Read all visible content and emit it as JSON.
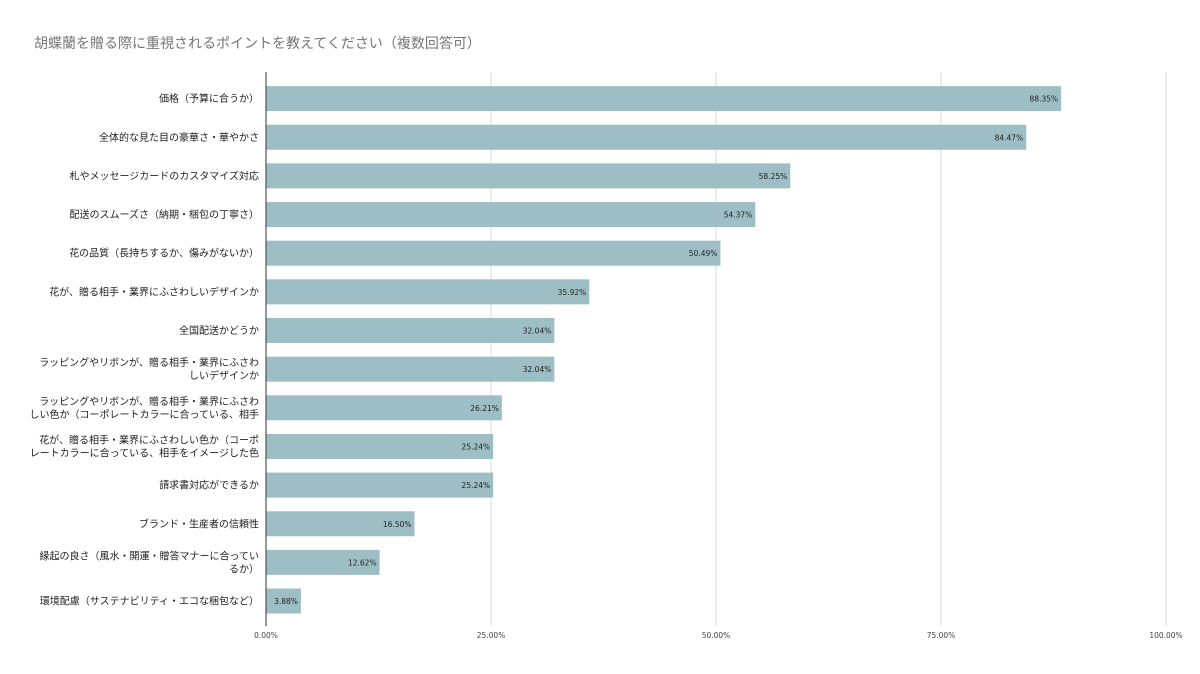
{
  "chart_data": {
    "type": "bar",
    "orientation": "horizontal",
    "title": "胡蝶蘭を贈る際に重視されるポイントを教えてください（複数回答可）",
    "xlabel": "",
    "ylabel": "",
    "xlim": [
      0,
      100
    ],
    "ticks": [
      "0.00%",
      "25.00%",
      "50.00%",
      "75.00%",
      "100.00%"
    ],
    "tick_values": [
      0,
      25,
      50,
      75,
      100
    ],
    "grid": true,
    "legend": "none",
    "bar_color": "#9dbec4",
    "categories": [
      [
        "価格（予算に合うか）"
      ],
      [
        "全体的な見た目の豪華さ・華やかさ"
      ],
      [
        "札やメッセージカードのカスタマイズ対応"
      ],
      [
        "配送のスムーズさ（納期・梱包の丁寧さ）"
      ],
      [
        "花の品質（長持ちするか、傷みがないか）"
      ],
      [
        "花が、贈る相手・業界にふさわしいデザインか"
      ],
      [
        "全国配送かどうか"
      ],
      [
        "ラッピングやリボンが、贈る相手・業界にふさわ",
        "しいデザインか"
      ],
      [
        "ラッピングやリボンが、贈る相手・業界にふさわ",
        "しい色か（コーポレートカラーに合っている、相手"
      ],
      [
        "花が、贈る相手・業界にふさわしい色か（コーポ",
        "レートカラーに合っている、相手をイメージした色"
      ],
      [
        "請求書対応ができるか"
      ],
      [
        "ブランド・生産者の信頼性"
      ],
      [
        "縁起の良さ（風水・開運・贈答マナーに合ってい",
        "るか）"
      ],
      [
        "環境配慮（サステナビリティ・エコな梱包など）"
      ]
    ],
    "values": [
      88.35,
      84.47,
      58.25,
      54.37,
      50.49,
      35.92,
      32.04,
      32.04,
      26.21,
      25.24,
      25.24,
      16.5,
      12.62,
      3.88
    ],
    "value_labels": [
      "88.35%",
      "84.47%",
      "58.25%",
      "54.37%",
      "50.49%",
      "35.92%",
      "32.04%",
      "32.04%",
      "26.21%",
      "25.24%",
      "25.24%",
      "16.50%",
      "12.62%",
      "3.88%"
    ]
  }
}
